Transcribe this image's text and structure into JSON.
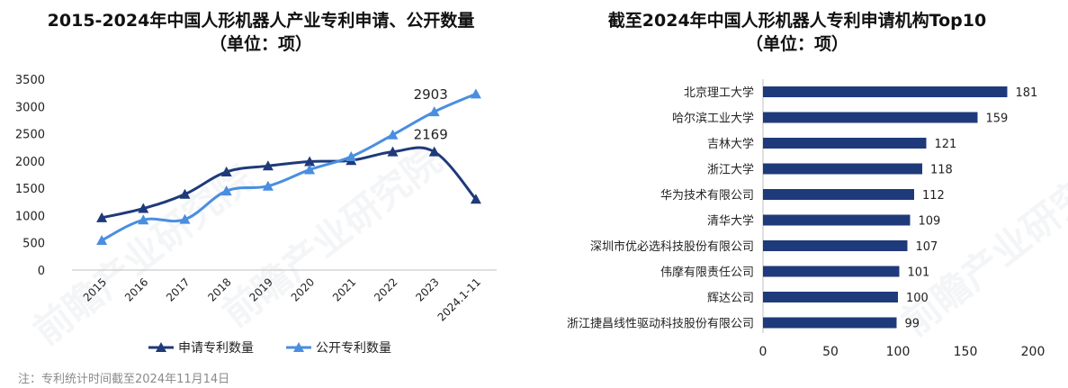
{
  "left_title": {
    "line1": "2015-2024年中国人形机器人产业专利申请、公开数量",
    "line2": "（单位：项）"
  },
  "right_title": {
    "line1": "截至2024年中国人形机器人专利申请机构Top10",
    "line2": "（单位：项）"
  },
  "note": "注：专利统计时间截至2024年11月14日",
  "watermark": "前瞻产业研究院",
  "colors": {
    "application": "#1f3a7a",
    "publication": "#4a8ee0",
    "bar": "#1f3a7a",
    "axis": "#bfbfbf"
  },
  "chart_data": [
    {
      "type": "line",
      "title": "2015-2024年中国人形机器人产业专利申请、公开数量（单位：项）",
      "categories": [
        "2015",
        "2016",
        "2017",
        "2018",
        "2019",
        "2020",
        "2021",
        "2022",
        "2023",
        "2024.1-11"
      ],
      "series": [
        {
          "name": "申请专利数量",
          "values": [
            960,
            1130,
            1390,
            1800,
            1910,
            1990,
            2010,
            2169,
            2169,
            1300
          ],
          "marker": "triangle"
        },
        {
          "name": "公开专利数量",
          "values": [
            545,
            920,
            930,
            1450,
            1540,
            1840,
            2080,
            2480,
            2903,
            3230
          ],
          "marker": "triangle"
        }
      ],
      "annotations": [
        {
          "series": "申请专利数量",
          "category": "2023",
          "label": "2169"
        },
        {
          "series": "公开专利数量",
          "category": "2023",
          "label": "2903"
        }
      ],
      "ylim": [
        0,
        3500
      ],
      "yticks": [
        0,
        500,
        1000,
        1500,
        2000,
        2500,
        3000,
        3500
      ],
      "grid": false,
      "legend": "bottom"
    },
    {
      "type": "bar",
      "orientation": "horizontal",
      "title": "截至2024年中国人形机器人专利申请机构Top10（单位：项）",
      "categories": [
        "北京理工大学",
        "哈尔滨工业大学",
        "吉林大学",
        "浙江大学",
        "华为技术有限公司",
        "清华大学",
        "深圳市优必选科技股份有限公司",
        "伟摩有限责任公司",
        "辉达公司",
        "浙江捷昌线性驱动科技股份有限公司"
      ],
      "values": [
        181,
        159,
        121,
        118,
        112,
        109,
        107,
        101,
        100,
        99
      ],
      "xlim": [
        0,
        200
      ],
      "xticks": [
        0,
        50,
        100,
        150,
        200
      ],
      "grid": false
    }
  ]
}
